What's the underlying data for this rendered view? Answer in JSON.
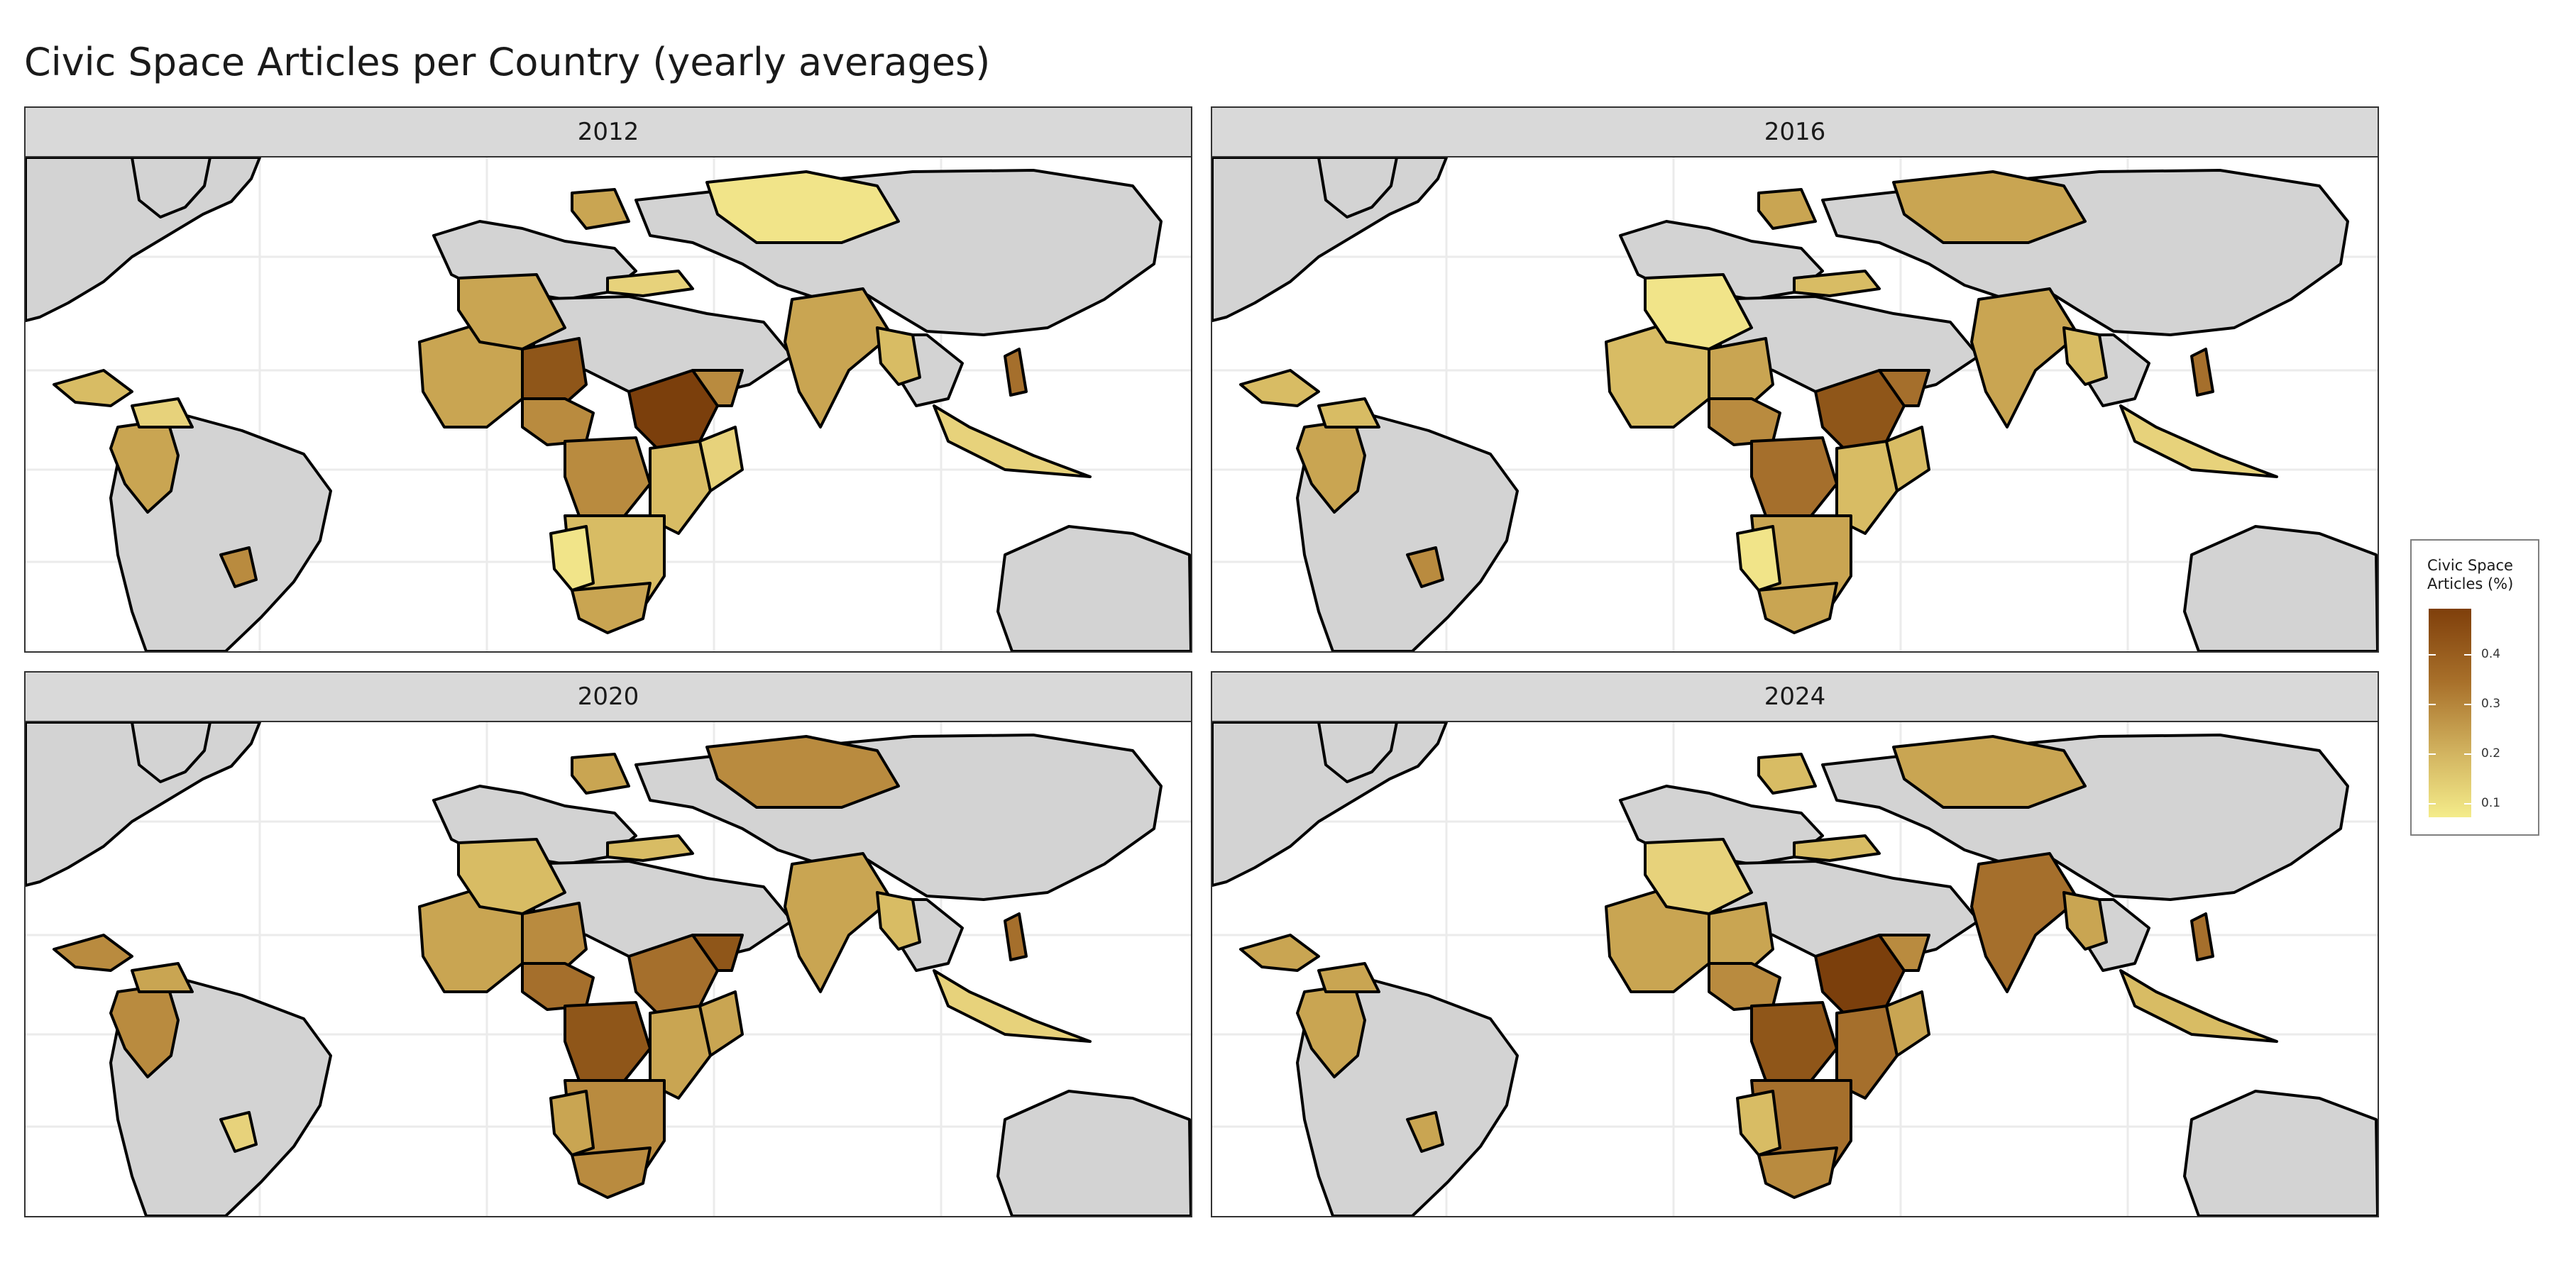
{
  "title": "Civic Space Articles per Country (yearly averages)",
  "panels": [
    {
      "label": "2012"
    },
    {
      "label": "2016"
    },
    {
      "label": "2020"
    },
    {
      "label": "2024"
    }
  ],
  "legend": {
    "title_line1": "Civic Space",
    "title_line2": "Articles (%)",
    "ticks": [
      {
        "label": "0.4",
        "value": 0.4
      },
      {
        "label": "0.3",
        "value": 0.3
      },
      {
        "label": "0.2",
        "value": 0.2
      },
      {
        "label": "0.1",
        "value": 0.1
      }
    ],
    "range": [
      0.03,
      0.45
    ],
    "colors": {
      "low": "#f4ec8a",
      "mid": "#d3b561",
      "high": "#7f3f0b"
    }
  },
  "map_colors": {
    "no_data": "#d3d3d3",
    "border": "#000000",
    "grid": "#ebebeb",
    "ocean": "#ffffff"
  }
}
